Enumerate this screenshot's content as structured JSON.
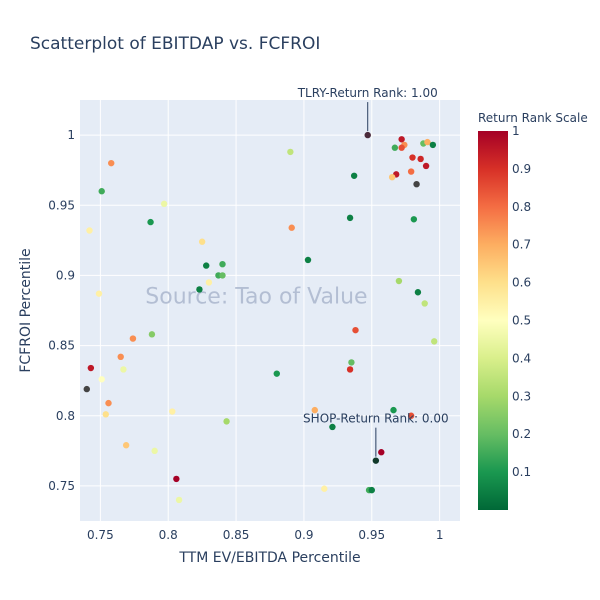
{
  "chart_data": {
    "type": "scatter",
    "title": "Scatterplot of EBITDAP vs. FCFROI",
    "xlabel": "TTM EV/EBITDA Percentile",
    "ylabel": "FCFROI Percentile",
    "xlim": [
      0.735,
      1.015
    ],
    "ylim": [
      0.725,
      1.025
    ],
    "x_ticks": [
      0.75,
      0.8,
      0.85,
      0.9,
      0.95,
      1
    ],
    "x_tick_labels": [
      "0.75",
      "0.8",
      "0.85",
      "0.9",
      "0.95",
      "1"
    ],
    "y_ticks": [
      0.75,
      0.8,
      0.85,
      0.9,
      0.95,
      1
    ],
    "y_tick_labels": [
      "0.75",
      "0.8",
      "0.85",
      "0.9",
      "0.95",
      "1"
    ],
    "grid": true,
    "watermark": "Source: Tao of Value",
    "colorbar": {
      "title": "Return Rank Scale",
      "range": [
        0,
        1
      ],
      "ticks": [
        0.1,
        0.2,
        0.3,
        0.4,
        0.5,
        0.6,
        0.7,
        0.8,
        0.9,
        1
      ],
      "tick_labels": [
        "0.1",
        "0.2",
        "0.3",
        "0.4",
        "0.5",
        "0.6",
        "0.7",
        "0.8",
        "0.9",
        "1"
      ],
      "colorscale": [
        "#006837",
        "#1a9850",
        "#66bd63",
        "#a6d96a",
        "#d9ef8b",
        "#ffffbf",
        "#fee08b",
        "#fdae61",
        "#f46d43",
        "#d73027",
        "#a50026"
      ]
    },
    "annotations": [
      {
        "text": "TLRY-Return Rank: 1.00",
        "x": 0.947,
        "y": 1.0
      },
      {
        "text": "SHOP-Return Rank: 0.00",
        "x": 0.953,
        "y": 0.768
      }
    ],
    "points": [
      {
        "x": 0.947,
        "y": 1.0,
        "c": 1.0,
        "highlight": true
      },
      {
        "x": 0.972,
        "y": 0.997,
        "c": 0.95
      },
      {
        "x": 0.974,
        "y": 0.993,
        "c": 0.75
      },
      {
        "x": 0.967,
        "y": 0.991,
        "c": 0.15
      },
      {
        "x": 0.972,
        "y": 0.991,
        "c": 0.85
      },
      {
        "x": 0.988,
        "y": 0.994,
        "c": 0.2
      },
      {
        "x": 0.991,
        "y": 0.995,
        "c": 0.7
      },
      {
        "x": 0.995,
        "y": 0.993,
        "c": 0.05
      },
      {
        "x": 0.98,
        "y": 0.984,
        "c": 0.9
      },
      {
        "x": 0.986,
        "y": 0.983,
        "c": 0.92
      },
      {
        "x": 0.99,
        "y": 0.978,
        "c": 0.95
      },
      {
        "x": 0.979,
        "y": 0.974,
        "c": 0.8
      },
      {
        "x": 0.968,
        "y": 0.972,
        "c": 0.95
      },
      {
        "x": 0.965,
        "y": 0.97,
        "c": 0.65
      },
      {
        "x": 0.983,
        "y": 0.965,
        "c": 0.5,
        "dark": true
      },
      {
        "x": 0.937,
        "y": 0.971,
        "c": 0.05
      },
      {
        "x": 0.981,
        "y": 0.94,
        "c": 0.1
      },
      {
        "x": 0.934,
        "y": 0.941,
        "c": 0.05
      },
      {
        "x": 0.89,
        "y": 0.988,
        "c": 0.35
      },
      {
        "x": 0.758,
        "y": 0.98,
        "c": 0.75
      },
      {
        "x": 0.751,
        "y": 0.96,
        "c": 0.15
      },
      {
        "x": 0.797,
        "y": 0.951,
        "c": 0.45
      },
      {
        "x": 0.787,
        "y": 0.938,
        "c": 0.1
      },
      {
        "x": 0.742,
        "y": 0.932,
        "c": 0.55
      },
      {
        "x": 0.891,
        "y": 0.934,
        "c": 0.75
      },
      {
        "x": 0.825,
        "y": 0.924,
        "c": 0.6
      },
      {
        "x": 0.903,
        "y": 0.911,
        "c": 0.05
      },
      {
        "x": 0.828,
        "y": 0.907,
        "c": 0.05
      },
      {
        "x": 0.84,
        "y": 0.908,
        "c": 0.15
      },
      {
        "x": 0.837,
        "y": 0.9,
        "c": 0.15
      },
      {
        "x": 0.84,
        "y": 0.9,
        "c": 0.2
      },
      {
        "x": 0.83,
        "y": 0.895,
        "c": 0.55
      },
      {
        "x": 0.823,
        "y": 0.89,
        "c": 0.05
      },
      {
        "x": 0.97,
        "y": 0.896,
        "c": 0.3
      },
      {
        "x": 0.984,
        "y": 0.888,
        "c": 0.05
      },
      {
        "x": 0.989,
        "y": 0.88,
        "c": 0.35
      },
      {
        "x": 0.749,
        "y": 0.887,
        "c": 0.55
      },
      {
        "x": 0.938,
        "y": 0.861,
        "c": 0.85
      },
      {
        "x": 0.788,
        "y": 0.858,
        "c": 0.25
      },
      {
        "x": 0.774,
        "y": 0.855,
        "c": 0.75
      },
      {
        "x": 0.996,
        "y": 0.853,
        "c": 0.35
      },
      {
        "x": 0.765,
        "y": 0.842,
        "c": 0.75
      },
      {
        "x": 0.935,
        "y": 0.838,
        "c": 0.2
      },
      {
        "x": 0.934,
        "y": 0.833,
        "c": 0.9
      },
      {
        "x": 0.743,
        "y": 0.834,
        "c": 0.95
      },
      {
        "x": 0.767,
        "y": 0.833,
        "c": 0.45
      },
      {
        "x": 0.88,
        "y": 0.83,
        "c": 0.1
      },
      {
        "x": 0.751,
        "y": 0.826,
        "c": 0.5
      },
      {
        "x": 0.74,
        "y": 0.819,
        "c": 0.5,
        "dark": true
      },
      {
        "x": 0.756,
        "y": 0.809,
        "c": 0.75
      },
      {
        "x": 0.908,
        "y": 0.804,
        "c": 0.7
      },
      {
        "x": 0.966,
        "y": 0.804,
        "c": 0.1
      },
      {
        "x": 0.803,
        "y": 0.803,
        "c": 0.55
      },
      {
        "x": 0.754,
        "y": 0.801,
        "c": 0.6
      },
      {
        "x": 0.979,
        "y": 0.8,
        "c": 0.85
      },
      {
        "x": 0.843,
        "y": 0.796,
        "c": 0.3
      },
      {
        "x": 0.921,
        "y": 0.792,
        "c": 0.05
      },
      {
        "x": 0.769,
        "y": 0.779,
        "c": 0.65
      },
      {
        "x": 0.79,
        "y": 0.775,
        "c": 0.45
      },
      {
        "x": 0.957,
        "y": 0.774,
        "c": 1.0
      },
      {
        "x": 0.953,
        "y": 0.768,
        "c": 0.0,
        "highlight": true
      },
      {
        "x": 0.806,
        "y": 0.755,
        "c": 1.0
      },
      {
        "x": 0.948,
        "y": 0.747,
        "c": 0.15
      },
      {
        "x": 0.95,
        "y": 0.747,
        "c": 0.05
      },
      {
        "x": 0.915,
        "y": 0.748,
        "c": 0.55
      },
      {
        "x": 0.808,
        "y": 0.74,
        "c": 0.45
      }
    ]
  }
}
